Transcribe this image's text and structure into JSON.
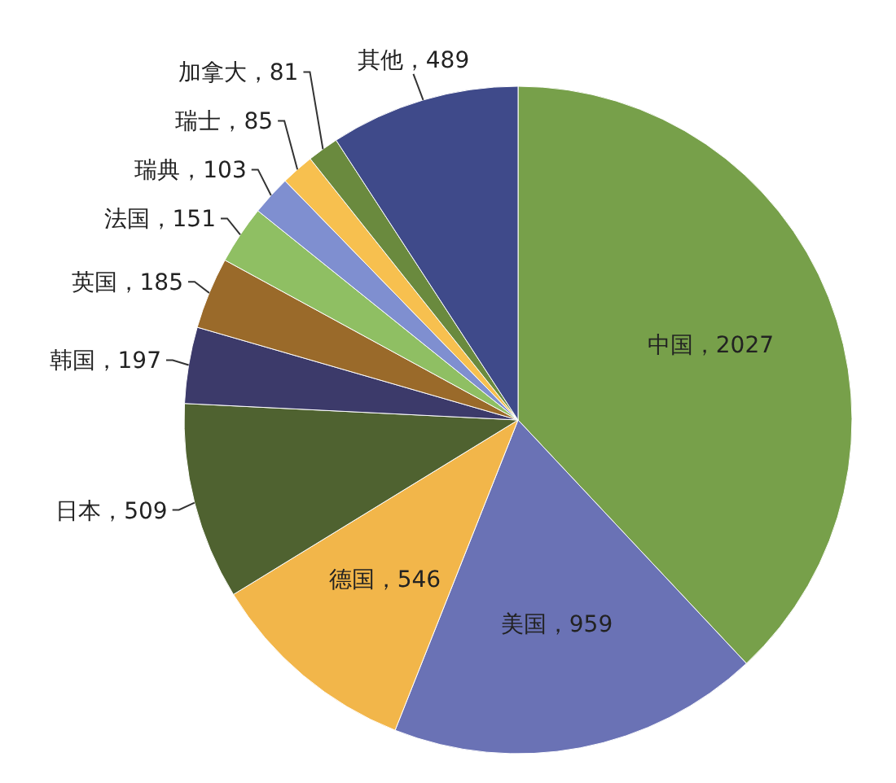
{
  "chart_data": {
    "type": "pie",
    "categories": [
      "中国",
      "美国",
      "德国",
      "日本",
      "韩国",
      "英国",
      "法国",
      "瑞典",
      "瑞士",
      "加拿大",
      "其他"
    ],
    "values": [
      2027,
      959,
      546,
      509,
      197,
      185,
      151,
      103,
      85,
      81,
      489
    ],
    "colors": [
      "#77a04a",
      "#6a72b5",
      "#f2b64a",
      "#4f6230",
      "#3c3a6a",
      "#9a6a2a",
      "#8fbf63",
      "#7f8fd0",
      "#f7c04f",
      "#6a8a3e",
      "#3f4a8a"
    ],
    "value_labels": [
      "，2027",
      "，959",
      "，546",
      "，509",
      "，197",
      "，185",
      "，151",
      "，103",
      "，85",
      "，81",
      "，489"
    ],
    "legend": false
  }
}
